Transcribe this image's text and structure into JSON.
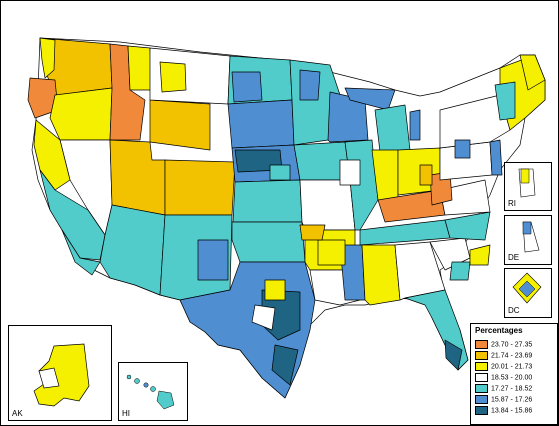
{
  "legend": {
    "title": "Percentages",
    "classes": [
      {
        "label": "23.70 - 27.35",
        "color": "#f0893a"
      },
      {
        "label": "21.74 - 23.69",
        "color": "#f2c200"
      },
      {
        "label": "20.01 - 21.73",
        "color": "#f5ef00"
      },
      {
        "label": "18.53 - 20.00",
        "color": "#ffffff"
      },
      {
        "label": "17.27 - 18.52",
        "color": "#52cbcb"
      },
      {
        "label": "15.87 - 17.26",
        "color": "#4f8ed0"
      },
      {
        "label": "13.84 - 15.86",
        "color": "#1f6583"
      }
    ]
  },
  "insets": {
    "ak": "AK",
    "hi": "HI",
    "ri": "RI",
    "de": "DE",
    "dc": "DC"
  },
  "colors": {
    "border": "#000000",
    "background": "#ffffff"
  }
}
